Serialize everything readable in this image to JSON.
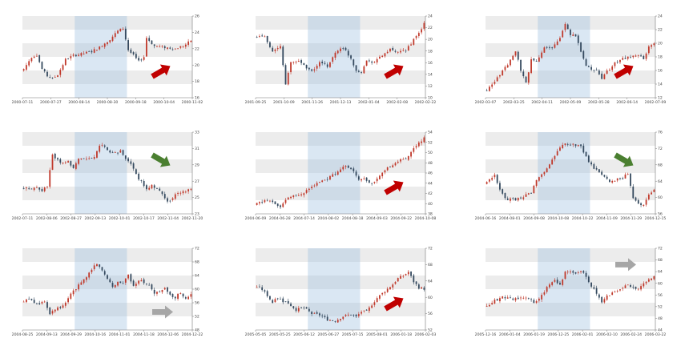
{
  "colors": {
    "band_gray": "#ececec",
    "band_white": "#ffffff",
    "highlight": "#9fbfe0",
    "up_candle": "#c0392b",
    "down_candle": "#34495e",
    "arrow_red": "#c00000",
    "arrow_green": "#4a7f30",
    "arrow_gray": "#a6a6a6"
  },
  "chart_data": [
    {
      "type": "candlestick",
      "arrow": {
        "direction": "up",
        "color": "red"
      },
      "x_ticks": [
        "2000-07-11",
        "2000-07-27",
        "2000-08-14",
        "2000-08-30",
        "2000-09-18",
        "2000-10-04",
        "2000-11-02"
      ],
      "y_ticks": [
        "26",
        "24",
        "22",
        "20",
        "18",
        "16"
      ],
      "ylim": [
        15,
        27
      ],
      "n": 65,
      "highlight_range": [
        20,
        39
      ],
      "path": [
        [
          0,
          19.2
        ],
        [
          3,
          21.0
        ],
        [
          5,
          21.3
        ],
        [
          7,
          19.2
        ],
        [
          9,
          18.2
        ],
        [
          11,
          17.8
        ],
        [
          13,
          18.4
        ],
        [
          16,
          20.6
        ],
        [
          19,
          21.2
        ],
        [
          22,
          21.4
        ],
        [
          26,
          21.8
        ],
        [
          29,
          22.4
        ],
        [
          33,
          23.6
        ],
        [
          36,
          24.8
        ],
        [
          38,
          25.2
        ],
        [
          40,
          22.0
        ],
        [
          42,
          21.2
        ],
        [
          44,
          20.3
        ],
        [
          46,
          21.0
        ],
        [
          47,
          23.8
        ],
        [
          50,
          22.6
        ],
        [
          54,
          22.4
        ],
        [
          58,
          22.2
        ],
        [
          62,
          22.8
        ],
        [
          64,
          23.4
        ]
      ]
    },
    {
      "type": "candlestick",
      "arrow": {
        "direction": "up",
        "color": "red"
      },
      "x_ticks": [
        "2001-09-25",
        "2001-10-09",
        "2001-11-26",
        "2001-12-13",
        "2002-01-04",
        "2002-02-08",
        "2002-02-22"
      ],
      "y_ticks": [
        "24",
        "22",
        "20",
        "18",
        "16",
        "14",
        "12",
        "10"
      ],
      "ylim": [
        10,
        25
      ],
      "n": 65,
      "highlight_range": [
        20,
        39
      ],
      "path": [
        [
          0,
          21.2
        ],
        [
          3,
          21.4
        ],
        [
          6,
          18.4
        ],
        [
          9,
          19.4
        ],
        [
          11,
          12.6
        ],
        [
          13,
          16.4
        ],
        [
          16,
          16.8
        ],
        [
          18,
          16.0
        ],
        [
          21,
          14.8
        ],
        [
          24,
          16.4
        ],
        [
          27,
          15.8
        ],
        [
          30,
          18.2
        ],
        [
          32,
          19.2
        ],
        [
          34,
          18.6
        ],
        [
          36,
          17.2
        ],
        [
          38,
          15.0
        ],
        [
          40,
          14.8
        ],
        [
          42,
          16.8
        ],
        [
          45,
          16.6
        ],
        [
          48,
          17.8
        ],
        [
          51,
          18.8
        ],
        [
          54,
          18.2
        ],
        [
          57,
          18.8
        ],
        [
          60,
          20.6
        ],
        [
          62,
          21.8
        ],
        [
          64,
          23.6
        ]
      ]
    },
    {
      "type": "candlestick",
      "arrow": {
        "direction": "up",
        "color": "red"
      },
      "x_ticks": [
        "2002-03-07",
        "2002-03-25",
        "2002-04-11",
        "2002-05-09",
        "2002-05-28",
        "2002-06-14",
        "2002-07-09"
      ],
      "y_ticks": [
        "24",
        "22",
        "20",
        "18",
        "16",
        "14",
        "12"
      ],
      "ylim": [
        11.5,
        25
      ],
      "n": 65,
      "highlight_range": [
        20,
        39
      ],
      "path": [
        [
          0,
          12.8
        ],
        [
          3,
          14.2
        ],
        [
          6,
          15.8
        ],
        [
          9,
          17.6
        ],
        [
          11,
          19.2
        ],
        [
          13,
          16.0
        ],
        [
          15,
          14.0
        ],
        [
          17,
          17.8
        ],
        [
          19,
          17.6
        ],
        [
          22,
          19.8
        ],
        [
          25,
          19.6
        ],
        [
          28,
          21.4
        ],
        [
          30,
          23.8
        ],
        [
          32,
          22.0
        ],
        [
          34,
          21.8
        ],
        [
          36,
          19.2
        ],
        [
          38,
          16.8
        ],
        [
          40,
          16.0
        ],
        [
          42,
          16.2
        ],
        [
          44,
          14.8
        ],
        [
          46,
          15.8
        ],
        [
          48,
          16.8
        ],
        [
          51,
          17.8
        ],
        [
          54,
          18.2
        ],
        [
          57,
          18.6
        ],
        [
          60,
          18.0
        ],
        [
          62,
          19.8
        ],
        [
          64,
          20.6
        ]
      ]
    },
    {
      "type": "candlestick",
      "arrow": {
        "direction": "down",
        "color": "green"
      },
      "x_ticks": [
        "2002-07-11",
        "2002-08-06",
        "2002-08-27",
        "2002-09-13",
        "2002-10-01",
        "2002-10-17",
        "2002-11-04",
        "2002-11-20"
      ],
      "y_ticks": [
        "33",
        "31",
        "29",
        "27",
        "25",
        "23"
      ],
      "ylim": [
        22.5,
        34
      ],
      "n": 65,
      "highlight_range": [
        20,
        39
      ],
      "path": [
        [
          0,
          26.2
        ],
        [
          3,
          26.0
        ],
        [
          5,
          26.2
        ],
        [
          7,
          25.8
        ],
        [
          9,
          26.4
        ],
        [
          11,
          30.8
        ],
        [
          14,
          29.6
        ],
        [
          17,
          29.8
        ],
        [
          19,
          29.0
        ],
        [
          21,
          30.2
        ],
        [
          24,
          30.2
        ],
        [
          27,
          30.4
        ],
        [
          29,
          32.2
        ],
        [
          31,
          32.0
        ],
        [
          33,
          31.2
        ],
        [
          35,
          31.0
        ],
        [
          37,
          31.4
        ],
        [
          39,
          30.2
        ],
        [
          41,
          29.6
        ],
        [
          43,
          28.0
        ],
        [
          45,
          27.0
        ],
        [
          47,
          26.0
        ],
        [
          49,
          26.6
        ],
        [
          51,
          26.0
        ],
        [
          53,
          25.2
        ],
        [
          55,
          24.2
        ],
        [
          57,
          24.8
        ],
        [
          59,
          25.4
        ],
        [
          61,
          25.6
        ],
        [
          64,
          26.0
        ]
      ]
    },
    {
      "type": "candlestick",
      "arrow": {
        "direction": "up",
        "color": "red"
      },
      "x_ticks": [
        "2004-06-09",
        "2004-06-28",
        "2004-07-14",
        "2004-08-02",
        "2004-08-18",
        "2004-09-03",
        "2004-09-22",
        "2004-10-08"
      ],
      "y_ticks": [
        "54",
        "52",
        "50",
        "48",
        "46",
        "44",
        "42",
        "40",
        "38"
      ],
      "ylim": [
        38,
        56
      ],
      "n": 65,
      "highlight_range": [
        20,
        39
      ],
      "path": [
        [
          0,
          40.2
        ],
        [
          3,
          41.0
        ],
        [
          6,
          40.6
        ],
        [
          9,
          39.4
        ],
        [
          12,
          41.6
        ],
        [
          15,
          42.0
        ],
        [
          18,
          42.8
        ],
        [
          21,
          44.2
        ],
        [
          24,
          45.0
        ],
        [
          27,
          45.8
        ],
        [
          30,
          46.8
        ],
        [
          33,
          48.6
        ],
        [
          35,
          48.2
        ],
        [
          37,
          47.2
        ],
        [
          39,
          45.6
        ],
        [
          41,
          46.0
        ],
        [
          43,
          44.8
        ],
        [
          45,
          45.2
        ],
        [
          48,
          46.8
        ],
        [
          51,
          48.6
        ],
        [
          54,
          49.6
        ],
        [
          57,
          50.2
        ],
        [
          60,
          52.4
        ],
        [
          62,
          53.8
        ],
        [
          64,
          54.6
        ]
      ]
    },
    {
      "type": "candlestick",
      "arrow": {
        "direction": "down",
        "color": "green"
      },
      "x_ticks": [
        "2004-06-16",
        "2004-08-01",
        "2004-09-08",
        "2004-10-08",
        "2004-10-22",
        "2004-11-09",
        "2004-11-29",
        "2004-12-15"
      ],
      "y_ticks": [
        "76",
        "72",
        "68",
        "64",
        "60",
        "56"
      ],
      "ylim": [
        54,
        78
      ],
      "n": 65,
      "highlight_range": [
        20,
        39
      ],
      "path": [
        [
          0,
          63.2
        ],
        [
          3,
          65.4
        ],
        [
          5,
          60.8
        ],
        [
          7,
          58.6
        ],
        [
          9,
          58.2
        ],
        [
          11,
          58.2
        ],
        [
          14,
          59.2
        ],
        [
          17,
          60.2
        ],
        [
          19,
          63.8
        ],
        [
          21,
          65.6
        ],
        [
          23,
          67.2
        ],
        [
          26,
          71.2
        ],
        [
          28,
          73.8
        ],
        [
          31,
          74.6
        ],
        [
          34,
          74.2
        ],
        [
          36,
          73.8
        ],
        [
          38,
          70.8
        ],
        [
          40,
          68.2
        ],
        [
          42,
          66.8
        ],
        [
          44,
          65.8
        ],
        [
          46,
          64.0
        ],
        [
          48,
          63.4
        ],
        [
          50,
          64.2
        ],
        [
          52,
          64.4
        ],
        [
          54,
          66.0
        ],
        [
          56,
          58.8
        ],
        [
          58,
          57.2
        ],
        [
          60,
          56.4
        ],
        [
          62,
          59.6
        ],
        [
          64,
          61.2
        ]
      ]
    },
    {
      "type": "candlestick",
      "arrow": {
        "direction": "flat",
        "color": "gray"
      },
      "x_ticks": [
        "2004-08-25",
        "2004-09-13",
        "2004-09-29",
        "2004-10-16",
        "2004-11-01",
        "2004-11-18",
        "2004-12-06",
        "2004-12-22"
      ],
      "y_ticks": [
        "72",
        "68",
        "64",
        "60",
        "56",
        "52",
        "48"
      ],
      "ylim": [
        48,
        73
      ],
      "n": 65,
      "highlight_range": [
        20,
        39
      ],
      "path": [
        [
          0,
          56.6
        ],
        [
          2,
          57.6
        ],
        [
          4,
          56.4
        ],
        [
          6,
          56.2
        ],
        [
          8,
          56.6
        ],
        [
          10,
          53.2
        ],
        [
          12,
          54.6
        ],
        [
          15,
          55.2
        ],
        [
          18,
          59.0
        ],
        [
          21,
          61.6
        ],
        [
          24,
          64.2
        ],
        [
          26,
          66.8
        ],
        [
          28,
          68.4
        ],
        [
          30,
          66.2
        ],
        [
          32,
          64.0
        ],
        [
          34,
          61.2
        ],
        [
          36,
          62.8
        ],
        [
          38,
          62.2
        ],
        [
          40,
          64.8
        ],
        [
          42,
          61.6
        ],
        [
          44,
          63.4
        ],
        [
          46,
          62.6
        ],
        [
          48,
          61.6
        ],
        [
          50,
          59.0
        ],
        [
          52,
          59.8
        ],
        [
          54,
          60.6
        ],
        [
          56,
          58.6
        ],
        [
          58,
          57.8
        ],
        [
          60,
          59.6
        ],
        [
          62,
          57.4
        ],
        [
          64,
          58.8
        ]
      ]
    },
    {
      "type": "candlestick",
      "arrow": {
        "direction": "up",
        "color": "red"
      },
      "x_ticks": [
        "2005-05-05",
        "2005-05-25",
        "2005-06-12",
        "2005-06-27",
        "2005-07-15",
        "2005-08-01",
        "2006-01-18",
        "2006-02-03"
      ],
      "y_ticks": [
        "72",
        "68",
        "64",
        "60",
        "56",
        "52"
      ],
      "ylim": [
        48,
        73
      ],
      "n": 65,
      "highlight_range": [
        20,
        39
      ],
      "path": [
        [
          0,
          61.2
        ],
        [
          2,
          60.4
        ],
        [
          4,
          58.6
        ],
        [
          6,
          56.4
        ],
        [
          8,
          57.8
        ],
        [
          10,
          56.8
        ],
        [
          12,
          56.2
        ],
        [
          15,
          54.2
        ],
        [
          18,
          54.8
        ],
        [
          21,
          53.0
        ],
        [
          24,
          52.6
        ],
        [
          27,
          51.2
        ],
        [
          30,
          50.8
        ],
        [
          33,
          52.2
        ],
        [
          36,
          52.8
        ],
        [
          38,
          52.0
        ],
        [
          40,
          53.6
        ],
        [
          42,
          53.6
        ],
        [
          44,
          55.8
        ],
        [
          46,
          57.8
        ],
        [
          48,
          59.2
        ],
        [
          50,
          60.6
        ],
        [
          52,
          62.0
        ],
        [
          54,
          63.8
        ],
        [
          56,
          64.6
        ],
        [
          58,
          65.8
        ],
        [
          60,
          62.8
        ],
        [
          62,
          61.0
        ],
        [
          64,
          60.6
        ]
      ]
    },
    {
      "type": "candlestick",
      "arrow": {
        "direction": "flat",
        "color": "gray"
      },
      "x_ticks": [
        "2005-12-16",
        "2006-01-04",
        "2006-01-19",
        "2006-12-25",
        "2006-02-01",
        "2006-02-10",
        "2006-02-24",
        "2006-03-22"
      ],
      "y_ticks": [
        "72",
        "68",
        "64",
        "60",
        "56",
        "52",
        "48",
        "44"
      ],
      "ylim": [
        44,
        72
      ],
      "n": 65,
      "highlight_range": [
        20,
        39
      ],
      "path": [
        [
          0,
          52.4
        ],
        [
          3,
          54.0
        ],
        [
          6,
          55.4
        ],
        [
          9,
          54.6
        ],
        [
          12,
          54.6
        ],
        [
          15,
          55.4
        ],
        [
          18,
          53.4
        ],
        [
          21,
          55.8
        ],
        [
          24,
          59.8
        ],
        [
          26,
          61.0
        ],
        [
          28,
          59.4
        ],
        [
          30,
          63.8
        ],
        [
          32,
          64.4
        ],
        [
          34,
          63.6
        ],
        [
          36,
          64.6
        ],
        [
          38,
          62.0
        ],
        [
          40,
          59.2
        ],
        [
          42,
          56.4
        ],
        [
          44,
          53.8
        ],
        [
          46,
          55.6
        ],
        [
          48,
          56.8
        ],
        [
          51,
          57.8
        ],
        [
          54,
          59.6
        ],
        [
          56,
          58.2
        ],
        [
          58,
          58.0
        ],
        [
          60,
          60.0
        ],
        [
          62,
          61.6
        ],
        [
          64,
          62.4
        ]
      ]
    }
  ]
}
